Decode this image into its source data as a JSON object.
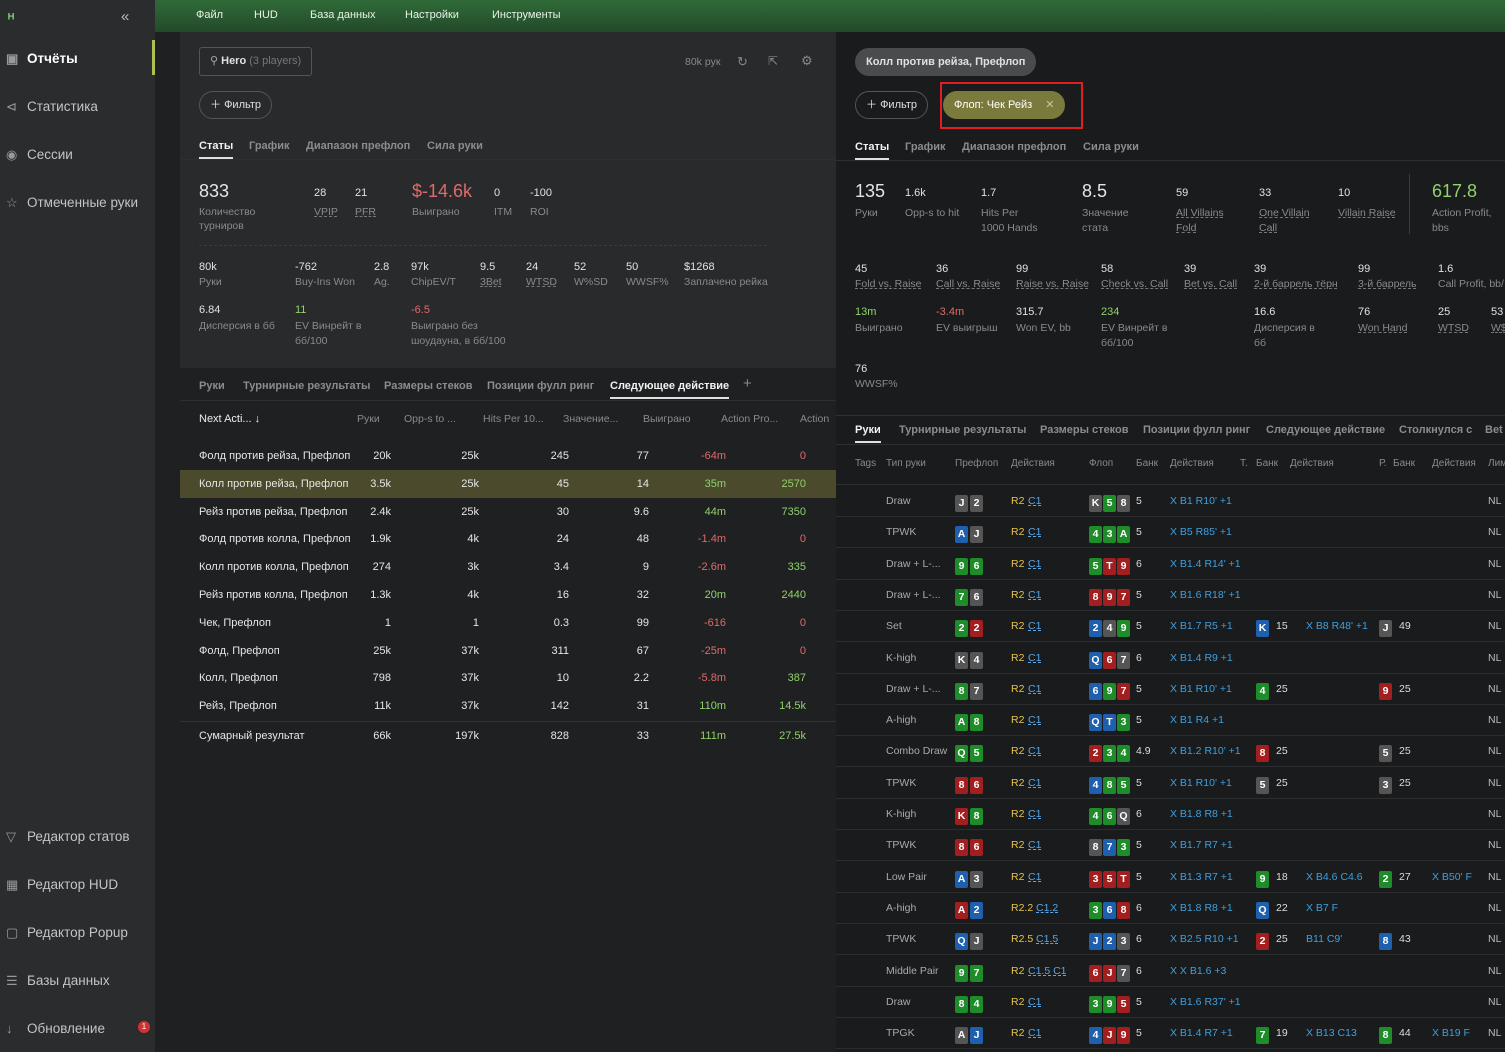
{
  "sidebar": {
    "logo": "ᴴ",
    "collapse": "«",
    "items": [
      {
        "label": "Отчёты",
        "icon": "▣"
      },
      {
        "label": "Статистика",
        "icon": "⊲"
      },
      {
        "label": "Сессии",
        "icon": "◉"
      },
      {
        "label": "Отмеченные руки",
        "icon": "☆"
      }
    ],
    "bottom": [
      {
        "label": "Редактор статов",
        "icon": "▽"
      },
      {
        "label": "Редактор HUD",
        "icon": "▦"
      },
      {
        "label": "Редактор Popup",
        "icon": "▢"
      },
      {
        "label": "Базы данных",
        "icon": "☰"
      },
      {
        "label": "Обновление",
        "icon": "↓"
      }
    ],
    "update_badge": "1"
  },
  "menu": [
    "Файл",
    "HUD",
    "База данных",
    "Настройки",
    "Инструменты"
  ],
  "left": {
    "player_label": "Hero",
    "player_sub": "(3 players)",
    "hands_count": "80k рук",
    "filter_label": "Фильтр",
    "tabs": [
      "Статы",
      "График",
      "Диапазон префлоп",
      "Сила руки"
    ],
    "stats": {
      "tourneys": "833",
      "tourneys_label": "Количество турниров",
      "vpip": "28",
      "vpip_label": "VPIP",
      "pfr": "21",
      "pfr_label": "PFR",
      "won": "$-14.6k",
      "won_label": "Выиграно",
      "itm": "0",
      "itm_label": "ITM",
      "roi": "-100",
      "roi_label": "ROI"
    },
    "stats2": [
      {
        "v": "80k",
        "l": "Руки"
      },
      {
        "v": "-762",
        "l": "Buy-Ins Won"
      },
      {
        "v": "2.8",
        "l": "Ag."
      },
      {
        "v": "97k",
        "l": "ChipEV/T"
      },
      {
        "v": "9.5",
        "l": "3Bet"
      },
      {
        "v": "24",
        "l": "WTSD"
      },
      {
        "v": "52",
        "l": "W%SD"
      },
      {
        "v": "50",
        "l": "WWSF%"
      },
      {
        "v": "$1268",
        "l": "Заплачено рейка"
      }
    ],
    "stats3": [
      {
        "v": "6.84",
        "l": "Дисперсия в бб"
      },
      {
        "v": "11",
        "l": "EV Винрейт в бб/100"
      },
      {
        "v": "-6.5",
        "l": "Выиграно без шоудауна, в бб/100"
      }
    ],
    "tabs2": [
      "Руки",
      "Турнирные результаты",
      "Размеры стеков",
      "Позиции фулл ринг",
      "Следующее действие"
    ],
    "columns": [
      "Next Acti...",
      "Руки",
      "Opp-s to ...",
      "Hits Per 10...",
      "Значение...",
      "Выиграно",
      "Action Pro...",
      "Action"
    ],
    "rows": [
      [
        "Фолд против рейза, Префлоп",
        "20k",
        "25k",
        "245",
        "77",
        "-64m",
        "0"
      ],
      [
        "Колл против рейза, Префлоп",
        "3.5k",
        "25k",
        "45",
        "14",
        "35m",
        "2570"
      ],
      [
        "Рейз против рейза, Префлоп",
        "2.4k",
        "25k",
        "30",
        "9.6",
        "44m",
        "7350"
      ],
      [
        "Фолд против колла, Префлоп",
        "1.9k",
        "4k",
        "24",
        "48",
        "-1.4m",
        "0"
      ],
      [
        "Колл против колла, Префлоп",
        "274",
        "3k",
        "3.4",
        "9",
        "-2.6m",
        "335"
      ],
      [
        "Рейз против колла, Префлоп",
        "1.3k",
        "4k",
        "16",
        "32",
        "20m",
        "2440"
      ],
      [
        "Чек, Префлоп",
        "1",
        "1",
        "0.3",
        "99",
        "-616",
        "0"
      ],
      [
        "Фолд, Префлоп",
        "25k",
        "37k",
        "311",
        "67",
        "-25m",
        "0"
      ],
      [
        "Колл, Префлоп",
        "798",
        "37k",
        "10",
        "2.2",
        "-5.8m",
        "387"
      ],
      [
        "Рейз, Префлоп",
        "11k",
        "37k",
        "142",
        "31",
        "110m",
        "14.5k"
      ]
    ],
    "total": [
      "Сумарный результат",
      "66k",
      "197k",
      "828",
      "33",
      "111m",
      "27.5k"
    ]
  },
  "right": {
    "context_chip": "Колл против рейза, Префлоп",
    "filter_label": "Фильтр",
    "active_filter": "Флоп: Чек Рейз",
    "tabs": [
      "Статы",
      "График",
      "Диапазон префлоп",
      "Сила руки"
    ],
    "stats": [
      {
        "v": "135",
        "l": "Руки"
      },
      {
        "v": "1.6k",
        "l": "Opp-s to hit"
      },
      {
        "v": "1.7",
        "l": "Hits Per 1000 Hands"
      },
      {
        "v": "8.5",
        "l": "Значение стата"
      },
      {
        "v": "59",
        "l": "All Villains Fold"
      },
      {
        "v": "33",
        "l": "One Villain Call"
      },
      {
        "v": "10",
        "l": "Villain Raise"
      },
      {
        "v": "617.8",
        "l": "Action Profit, bbs"
      }
    ],
    "stats2": [
      {
        "v": "45",
        "l": "Fold vs. Raise"
      },
      {
        "v": "36",
        "l": "Call vs. Raise"
      },
      {
        "v": "99",
        "l": "Raise vs. Raise"
      },
      {
        "v": "58",
        "l": "Check vs. Call"
      },
      {
        "v": "39",
        "l": "Bet vs. Call"
      },
      {
        "v": "39",
        "l": "2-й баррель тёрн"
      },
      {
        "v": "99",
        "l": "3-й баррель"
      },
      {
        "v": "1.6",
        "l": "Call Profit, bb/"
      }
    ],
    "stats3": [
      {
        "v": "13m",
        "l": "Выиграно"
      },
      {
        "v": "-3.4m",
        "l": "EV выигрыш"
      },
      {
        "v": "315.7",
        "l": "Won EV, bb"
      },
      {
        "v": "234",
        "l": "EV Винрейт в бб/100"
      },
      {
        "v": "16.6",
        "l": "Дисперсия в бб"
      },
      {
        "v": "76",
        "l": "Won Hand"
      },
      {
        "v": "25",
        "l": "WTSD"
      },
      {
        "v": "53",
        "l": "W$"
      }
    ],
    "stats4": [
      {
        "v": "76",
        "l": "WWSF%"
      }
    ],
    "tabs2": [
      "Руки",
      "Турнирные результаты",
      "Размеры стеков",
      "Позиции фулл ринг",
      "Следующее действие",
      "Столкнулся с",
      "Bet"
    ],
    "columns": [
      "Tags",
      "Тип руки",
      "Префлоп",
      "Действия",
      "Флоп",
      "Банк",
      "Действия",
      "Т.",
      "Банк",
      "Действия",
      "Р.",
      "Банк",
      "Действия",
      "Лим"
    ],
    "hands": [
      {
        "type": "Draw",
        "hole": [
          [
            "J",
            "c-gray"
          ],
          [
            "2",
            "c-gray"
          ]
        ],
        "pre": "R2",
        "pre2": "C1",
        "flop": [
          [
            "K",
            "c-gray"
          ],
          [
            "5",
            "c-green"
          ],
          [
            "8",
            "c-gray"
          ]
        ],
        "bank": "5",
        "fa": "X B1 R10' +1",
        "limit": "NL"
      },
      {
        "type": "TPWK",
        "hole": [
          [
            "A",
            "c-blue"
          ],
          [
            "J",
            "c-gray"
          ]
        ],
        "pre": "R2",
        "pre2": "C1",
        "flop": [
          [
            "4",
            "c-green"
          ],
          [
            "3",
            "c-green"
          ],
          [
            "A",
            "c-green"
          ]
        ],
        "bank": "5",
        "fa": "X B5 R85' +1",
        "limit": "NL"
      },
      {
        "type": "Draw + L-...",
        "hole": [
          [
            "9",
            "c-green"
          ],
          [
            "6",
            "c-green"
          ]
        ],
        "pre": "R2",
        "pre2": "C1",
        "flop": [
          [
            "5",
            "c-green"
          ],
          [
            "T",
            "c-red"
          ],
          [
            "9",
            "c-red"
          ]
        ],
        "bank": "6",
        "fa": "X B1.4 R14' +1",
        "limit": "NL"
      },
      {
        "type": "Draw + L-...",
        "hole": [
          [
            "7",
            "c-green"
          ],
          [
            "6",
            "c-gray"
          ]
        ],
        "pre": "R2",
        "pre2": "C1",
        "flop": [
          [
            "8",
            "c-red"
          ],
          [
            "9",
            "c-red"
          ],
          [
            "7",
            "c-red"
          ]
        ],
        "bank": "5",
        "fa": "X B1.6 R18' +1",
        "limit": "NL"
      },
      {
        "type": "Set",
        "hole": [
          [
            "2",
            "c-green"
          ],
          [
            "2",
            "c-red"
          ]
        ],
        "pre": "R2",
        "pre2": "C1",
        "flop": [
          [
            "2",
            "c-blue"
          ],
          [
            "4",
            "c-gray"
          ],
          [
            "9",
            "c-green"
          ]
        ],
        "bank": "5",
        "fa": "X B1.7 R5 +1",
        "turn": [
          "K",
          "c-blue"
        ],
        "tbank": "15",
        "ta": "X B8 R48' +1",
        "river": [
          "J",
          "c-gray"
        ],
        "rbank": "49",
        "limit": "NL"
      },
      {
        "type": "K-high",
        "hole": [
          [
            "K",
            "c-gray"
          ],
          [
            "4",
            "c-gray"
          ]
        ],
        "pre": "R2",
        "pre2": "C1",
        "flop": [
          [
            "Q",
            "c-blue"
          ],
          [
            "6",
            "c-red"
          ],
          [
            "7",
            "c-gray"
          ]
        ],
        "bank": "6",
        "fa": "X B1.4 R9 +1",
        "limit": "NL"
      },
      {
        "type": "Draw + L-...",
        "hole": [
          [
            "8",
            "c-green"
          ],
          [
            "7",
            "c-gray"
          ]
        ],
        "pre": "R2",
        "pre2": "C1",
        "flop": [
          [
            "6",
            "c-blue"
          ],
          [
            "9",
            "c-green"
          ],
          [
            "7",
            "c-red"
          ]
        ],
        "bank": "5",
        "fa": "X B1 R10' +1",
        "turn": [
          "4",
          "c-green"
        ],
        "tbank": "25",
        "river": [
          "9",
          "c-red"
        ],
        "rbank": "25",
        "limit": "NL"
      },
      {
        "type": "A-high",
        "hole": [
          [
            "A",
            "c-green"
          ],
          [
            "8",
            "c-green"
          ]
        ],
        "pre": "R2",
        "pre2": "C1",
        "flop": [
          [
            "Q",
            "c-blue"
          ],
          [
            "T",
            "c-blue"
          ],
          [
            "3",
            "c-green"
          ]
        ],
        "bank": "5",
        "fa": "X B1 R4 +1",
        "limit": "NL"
      },
      {
        "type": "Combo Draw",
        "hole": [
          [
            "Q",
            "c-green"
          ],
          [
            "5",
            "c-green"
          ]
        ],
        "pre": "R2",
        "pre2": "C1",
        "flop": [
          [
            "2",
            "c-red"
          ],
          [
            "3",
            "c-green"
          ],
          [
            "4",
            "c-green"
          ]
        ],
        "bank": "4.9",
        "fa": "X B1.2 R10' +1",
        "turn": [
          "8",
          "c-red"
        ],
        "tbank": "25",
        "river": [
          "5",
          "c-gray"
        ],
        "rbank": "25",
        "limit": "NL"
      },
      {
        "type": "TPWK",
        "hole": [
          [
            "8",
            "c-red"
          ],
          [
            "6",
            "c-red"
          ]
        ],
        "pre": "R2",
        "pre2": "C1",
        "flop": [
          [
            "4",
            "c-blue"
          ],
          [
            "8",
            "c-green"
          ],
          [
            "5",
            "c-green"
          ]
        ],
        "bank": "5",
        "fa": "X B1 R10' +1",
        "turn": [
          "5",
          "c-gray"
        ],
        "tbank": "25",
        "river": [
          "3",
          "c-gray"
        ],
        "rbank": "25",
        "limit": "NL"
      },
      {
        "type": "K-high",
        "hole": [
          [
            "K",
            "c-red"
          ],
          [
            "8",
            "c-green"
          ]
        ],
        "pre": "R2",
        "pre2": "C1",
        "flop": [
          [
            "4",
            "c-green"
          ],
          [
            "6",
            "c-green"
          ],
          [
            "Q",
            "c-gray"
          ]
        ],
        "bank": "6",
        "fa": "X B1.8 R8 +1",
        "limit": "NL"
      },
      {
        "type": "TPWK",
        "hole": [
          [
            "8",
            "c-red"
          ],
          [
            "6",
            "c-red"
          ]
        ],
        "pre": "R2",
        "pre2": "C1",
        "flop": [
          [
            "8",
            "c-gray"
          ],
          [
            "7",
            "c-blue"
          ],
          [
            "3",
            "c-green"
          ]
        ],
        "bank": "5",
        "fa": "X B1.7 R7 +1",
        "limit": "NL"
      },
      {
        "type": "Low Pair",
        "hole": [
          [
            "A",
            "c-blue"
          ],
          [
            "3",
            "c-gray"
          ]
        ],
        "pre": "R2",
        "pre2": "C1",
        "flop": [
          [
            "3",
            "c-red"
          ],
          [
            "5",
            "c-red"
          ],
          [
            "T",
            "c-red"
          ]
        ],
        "bank": "5",
        "fa": "X B1.3 R7 +1",
        "turn": [
          "9",
          "c-green"
        ],
        "tbank": "18",
        "ta": "X B4.6 C4.6",
        "river": [
          "2",
          "c-green"
        ],
        "rbank": "27",
        "ra": "X B50' F",
        "limit": "NL"
      },
      {
        "type": "A-high",
        "hole": [
          [
            "A",
            "c-red"
          ],
          [
            "2",
            "c-blue"
          ]
        ],
        "pre": "R2.2",
        "pre2": "C1.2",
        "flop": [
          [
            "3",
            "c-green"
          ],
          [
            "6",
            "c-blue"
          ],
          [
            "8",
            "c-red"
          ]
        ],
        "bank": "6",
        "fa": "X B1.8 R8 +1",
        "turn": [
          "Q",
          "c-blue"
        ],
        "tbank": "22",
        "ta": "X B7 F",
        "limit": "NL"
      },
      {
        "type": "TPWK",
        "hole": [
          [
            "Q",
            "c-blue"
          ],
          [
            "J",
            "c-gray"
          ]
        ],
        "pre": "R2.5",
        "pre2": "C1.5",
        "flop": [
          [
            "J",
            "c-blue"
          ],
          [
            "2",
            "c-blue"
          ],
          [
            "3",
            "c-gray"
          ]
        ],
        "bank": "6",
        "fa": "X B2.5 R10 +1",
        "turn": [
          "2",
          "c-red"
        ],
        "tbank": "25",
        "ta": "B11 C9'",
        "river": [
          "8",
          "c-blue"
        ],
        "rbank": "43",
        "limit": "NL"
      },
      {
        "type": "Middle Pair",
        "hole": [
          [
            "9",
            "c-green"
          ],
          [
            "7",
            "c-green"
          ]
        ],
        "pre": "R2",
        "pre2": "C1.5 C1",
        "flop": [
          [
            "6",
            "c-red"
          ],
          [
            "J",
            "c-red"
          ],
          [
            "7",
            "c-gray"
          ]
        ],
        "bank": "6",
        "fa": "X X B1.6 +3",
        "limit": "NL"
      },
      {
        "type": "Draw",
        "hole": [
          [
            "8",
            "c-green"
          ],
          [
            "4",
            "c-green"
          ]
        ],
        "pre": "R2",
        "pre2": "C1",
        "flop": [
          [
            "3",
            "c-green"
          ],
          [
            "9",
            "c-green"
          ],
          [
            "5",
            "c-red"
          ]
        ],
        "bank": "5",
        "fa": "X B1.6 R37' +1",
        "limit": "NL"
      },
      {
        "type": "TPGK",
        "hole": [
          [
            "A",
            "c-gray"
          ],
          [
            "J",
            "c-blue"
          ]
        ],
        "pre": "R2",
        "pre2": "C1",
        "flop": [
          [
            "4",
            "c-blue"
          ],
          [
            "J",
            "c-red"
          ],
          [
            "9",
            "c-red"
          ]
        ],
        "bank": "5",
        "fa": "X B1.4 R7 +1",
        "turn": [
          "7",
          "c-green"
        ],
        "tbank": "19",
        "ta": "X B13 C13",
        "river": [
          "8",
          "c-green"
        ],
        "rbank": "44",
        "ra": "X B19 F",
        "limit": "NL"
      }
    ]
  }
}
